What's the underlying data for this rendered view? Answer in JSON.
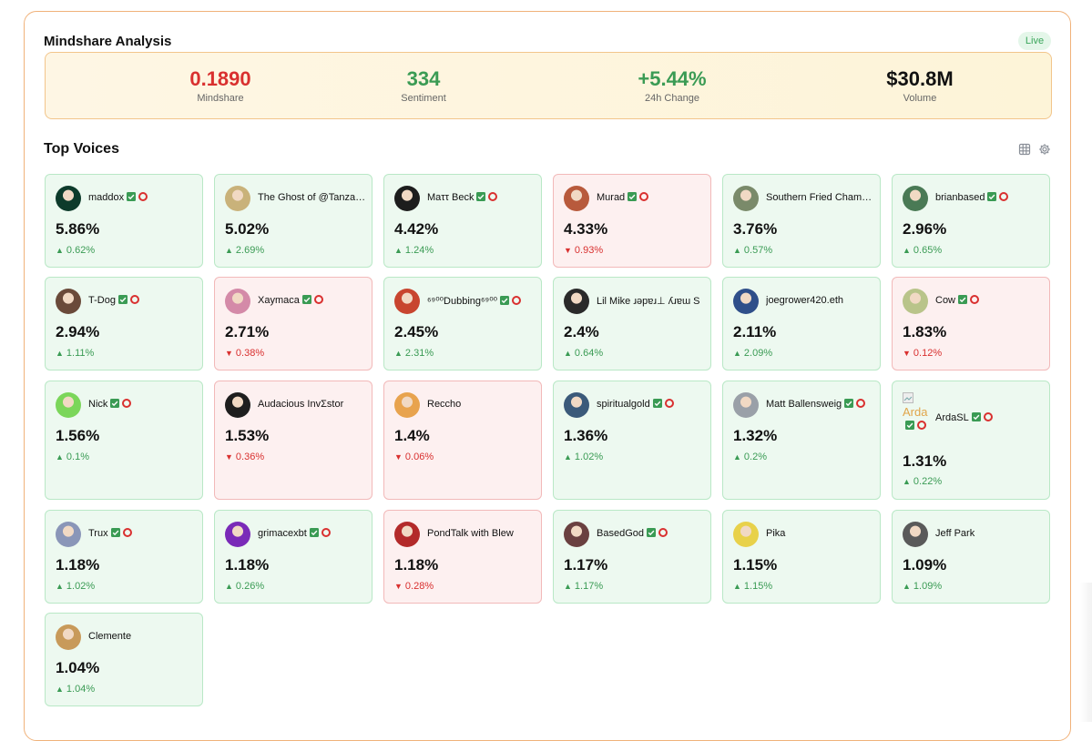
{
  "header": {
    "title": "Mindshare Analysis",
    "live_label": "Live"
  },
  "stats": [
    {
      "value": "0.1890",
      "label": "Mindshare",
      "tone": "red"
    },
    {
      "value": "334",
      "label": "Sentiment",
      "tone": "green"
    },
    {
      "value": "+5.44%",
      "label": "24h Change",
      "tone": "green"
    },
    {
      "value": "$30.8M",
      "label": "Volume",
      "tone": "black"
    }
  ],
  "voices": {
    "title": "Top Voices",
    "grid_icon": "grid-icon",
    "settings_icon": "gear-icon",
    "items": [
      {
        "name": "maddox",
        "share": "5.86%",
        "delta": "0.62%",
        "dir": "up",
        "badges": true,
        "avatar_color": "#0d3b2b"
      },
      {
        "name": "The Ghost of @TanzanianDoge",
        "share": "5.02%",
        "delta": "2.69%",
        "dir": "up",
        "badges": false,
        "avatar_color": "#c9b27a"
      },
      {
        "name": "Maττ Beck",
        "share": "4.42%",
        "delta": "1.24%",
        "dir": "up",
        "badges": true,
        "avatar_color": "#1d1d1d"
      },
      {
        "name": "Murad",
        "share": "4.33%",
        "delta": "0.93%",
        "dir": "down",
        "badges": true,
        "avatar_color": "#b85a3c"
      },
      {
        "name": "Southern Fried Chamath",
        "share": "3.76%",
        "delta": "0.57%",
        "dir": "up",
        "badges": false,
        "avatar_color": "#7a8a6a"
      },
      {
        "name": "brianbased",
        "share": "2.96%",
        "delta": "0.65%",
        "dir": "up",
        "badges": true,
        "avatar_color": "#4a7a55"
      },
      {
        "name": "T-Dog",
        "share": "2.94%",
        "delta": "1.11%",
        "dir": "up",
        "badges": true,
        "avatar_color": "#6a4a3a"
      },
      {
        "name": "Xaymaca",
        "share": "2.71%",
        "delta": "0.38%",
        "dir": "down",
        "badges": true,
        "avatar_color": "#d48aa8"
      },
      {
        "name": "⁶⁹⁰⁰Dubbing⁶⁹⁰⁰",
        "share": "2.45%",
        "delta": "2.31%",
        "dir": "up",
        "badges": true,
        "avatar_color": "#c8452f"
      },
      {
        "name": "Lil Mike ɹǝpɐɹ⊥ ʎɹɐɯ S",
        "share": "2.4%",
        "delta": "0.64%",
        "dir": "up",
        "badges": false,
        "avatar_color": "#2a2a2a"
      },
      {
        "name": "joegrower420.eth",
        "share": "2.11%",
        "delta": "2.09%",
        "dir": "up",
        "badges": false,
        "avatar_color": "#2f4f8a"
      },
      {
        "name": "Cow",
        "share": "1.83%",
        "delta": "0.12%",
        "dir": "down",
        "badges": true,
        "avatar_color": "#b9c48a"
      },
      {
        "name": "Nick",
        "share": "1.56%",
        "delta": "0.1%",
        "dir": "up",
        "badges": true,
        "avatar_color": "#7bd65a"
      },
      {
        "name": "Audacious InvΣstor",
        "share": "1.53%",
        "delta": "0.36%",
        "dir": "down",
        "badges": false,
        "avatar_color": "#1e1e1e"
      },
      {
        "name": "Reccho",
        "share": "1.4%",
        "delta": "0.06%",
        "dir": "down",
        "badges": false,
        "avatar_color": "#e8a34e"
      },
      {
        "name": "spiritualgold",
        "share": "1.36%",
        "delta": "1.02%",
        "dir": "up",
        "badges": true,
        "avatar_color": "#3b5a7a"
      },
      {
        "name": "Matt Ballensweig",
        "share": "1.32%",
        "delta": "0.2%",
        "dir": "up",
        "badges": true,
        "avatar_color": "#9aa0a8"
      },
      {
        "name": "ArdaSL",
        "share": "1.31%",
        "delta": "0.22%",
        "dir": "up",
        "badges": true,
        "avatar_color": "",
        "broken_alt": "Arda"
      },
      {
        "name": "Trux",
        "share": "1.18%",
        "delta": "1.02%",
        "dir": "up",
        "badges": true,
        "avatar_color": "#8a96b8"
      },
      {
        "name": "grimacexbt",
        "share": "1.18%",
        "delta": "0.26%",
        "dir": "up",
        "badges": true,
        "avatar_color": "#7a2ab8"
      },
      {
        "name": "PondTalk with Blew",
        "share": "1.18%",
        "delta": "0.28%",
        "dir": "down",
        "badges": false,
        "avatar_color": "#b32a2a"
      },
      {
        "name": "BasedGod",
        "share": "1.17%",
        "delta": "1.17%",
        "dir": "up",
        "badges": true,
        "avatar_color": "#6a4040"
      },
      {
        "name": "Pika",
        "share": "1.15%",
        "delta": "1.15%",
        "dir": "up",
        "badges": false,
        "avatar_color": "#e8d14a"
      },
      {
        "name": "Jeff Park",
        "share": "1.09%",
        "delta": "1.09%",
        "dir": "up",
        "badges": false,
        "avatar_color": "#5a5a5a"
      },
      {
        "name": "Clemente",
        "share": "1.04%",
        "delta": "1.04%",
        "dir": "up",
        "badges": false,
        "avatar_color": "#c89a5a"
      }
    ]
  }
}
